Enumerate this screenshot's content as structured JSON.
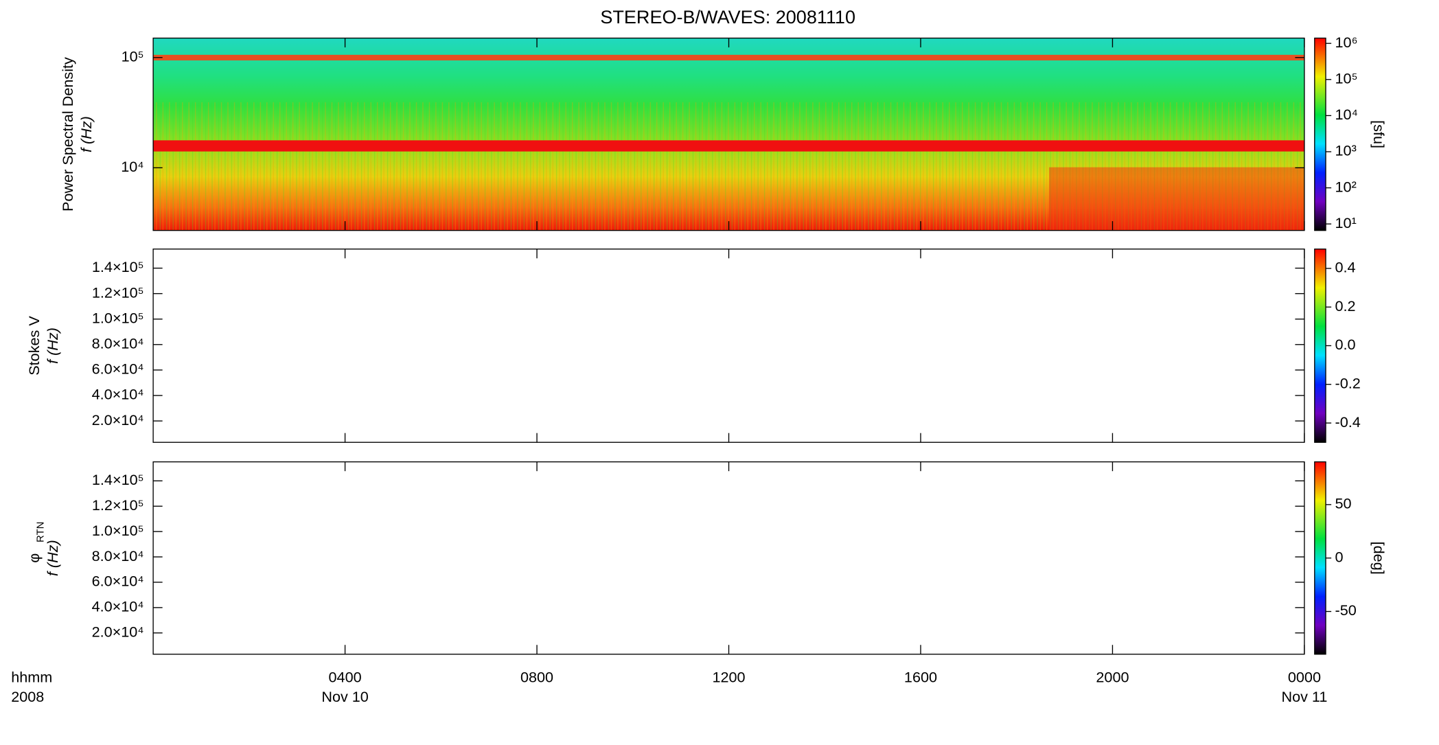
{
  "chart_data": [
    {
      "type": "spectrogram",
      "title": "STEREO-B/WAVES: 20081110",
      "ylabel": "Power Spectral Density",
      "ylabel2": "f (Hz)",
      "log": true,
      "ylim": [
        2700,
        150000
      ],
      "yticks": [
        {
          "value": 10000,
          "label": "10⁴"
        },
        {
          "value": 100000,
          "label": "10⁵"
        }
      ],
      "colorbar": {
        "log": true,
        "clim": [
          6.6,
          1400000
        ],
        "label": "[sfu]",
        "ticks": [
          {
            "value": 10,
            "label": "10¹"
          },
          {
            "value": 100,
            "label": "10²"
          },
          {
            "value": 1000,
            "label": "10³"
          },
          {
            "value": 10000,
            "label": "10⁴"
          },
          {
            "value": 100000,
            "label": "10⁵"
          },
          {
            "value": 1000000,
            "label": "10⁶"
          }
        ]
      }
    },
    {
      "type": "spectrogram",
      "ylabel": "Stokes V",
      "ylabel2": "f (Hz)",
      "log": false,
      "ylim": [
        3200,
        155000
      ],
      "yticks": [
        {
          "value": 20000,
          "label": "2.0×10⁴"
        },
        {
          "value": 40000,
          "label": "4.0×10⁴"
        },
        {
          "value": 60000,
          "label": "6.0×10⁴"
        },
        {
          "value": 80000,
          "label": "8.0×10⁴"
        },
        {
          "value": 100000,
          "label": "1.0×10⁵"
        },
        {
          "value": 120000,
          "label": "1.2×10⁵"
        },
        {
          "value": 140000,
          "label": "1.4×10⁵"
        }
      ],
      "colorbar": {
        "log": false,
        "clim": [
          -0.5,
          0.5
        ],
        "ticks": [
          -0.4,
          -0.2,
          {
            "value": 0,
            "label": "0.0"
          },
          0.2,
          0.4
        ]
      }
    },
    {
      "type": "spectrogram",
      "ylabel": "φ",
      "ylabel_sub": "RTN",
      "ylabel2": "f (Hz)",
      "log": false,
      "ylim": [
        3200,
        155000
      ],
      "yticks": [
        {
          "value": 20000,
          "label": "2.0×10⁴"
        },
        {
          "value": 40000,
          "label": "4.0×10⁴"
        },
        {
          "value": 60000,
          "label": "6.0×10⁴"
        },
        {
          "value": 80000,
          "label": "8.0×10⁴"
        },
        {
          "value": 100000,
          "label": "1.0×10⁵"
        },
        {
          "value": 120000,
          "label": "1.2×10⁵"
        },
        {
          "value": 140000,
          "label": "1.4×10⁵"
        }
      ],
      "colorbar": {
        "log": false,
        "clim": [
          -90,
          90
        ],
        "label": "[deg]",
        "ticks": [
          -50,
          0,
          50
        ]
      },
      "xunit": "hhmm",
      "year": "2008",
      "xlim": [
        0,
        24
      ],
      "xticks": [
        {
          "value": 4,
          "label": "0400",
          "date": "Nov 10"
        },
        {
          "value": 8,
          "label": "0800"
        },
        {
          "value": 12,
          "label": "1200"
        },
        {
          "value": 16,
          "label": "1600"
        },
        {
          "value": 20,
          "label": "2000"
        },
        {
          "value": 24,
          "label": "0000",
          "date": "Nov 11"
        }
      ]
    }
  ]
}
